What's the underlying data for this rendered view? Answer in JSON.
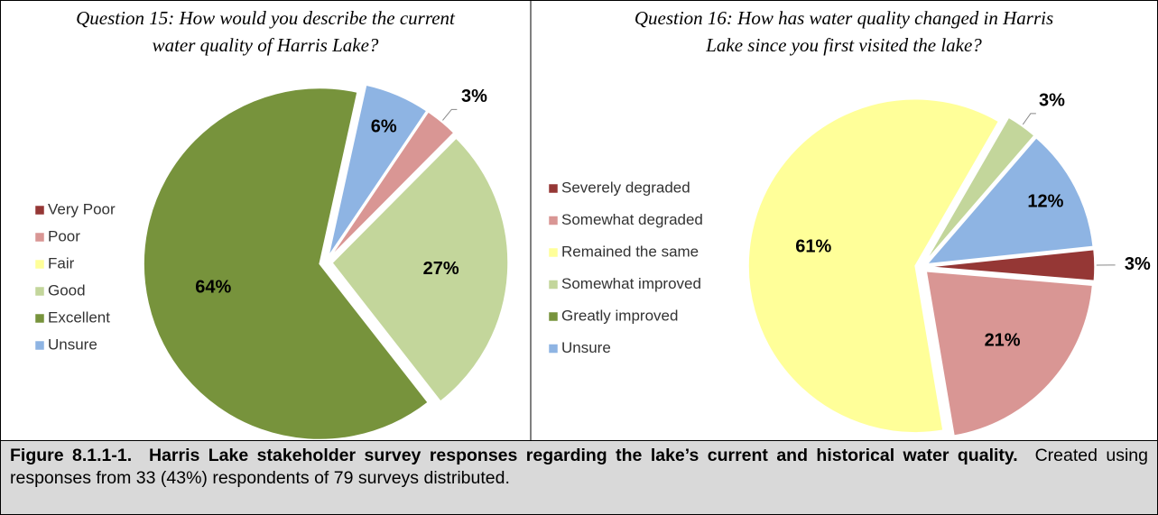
{
  "chart_data": [
    {
      "type": "pie",
      "title": "Question 15: How would you describe the current water quality of Harris Lake?",
      "categories": [
        "Very Poor",
        "Poor",
        "Fair",
        "Good",
        "Excellent",
        "Unsure"
      ],
      "values": [
        0,
        3,
        0,
        27,
        64,
        6
      ],
      "value_labels": [
        null,
        "3%",
        null,
        "27%",
        "64%",
        "6%"
      ],
      "colors": [
        "#953735",
        "#d99694",
        "#ffff99",
        "#c3d69b",
        "#77933c",
        "#8eb4e3"
      ]
    },
    {
      "type": "pie",
      "title": "Question 16: How has water quality changed in Harris Lake since you first visited the lake?",
      "categories": [
        "Severely degraded",
        "Somewhat degraded",
        "Remained the same",
        "Somewhat improved",
        "Greatly improved",
        "Unsure"
      ],
      "values": [
        3,
        21,
        61,
        3,
        0,
        12
      ],
      "value_labels": [
        "3%",
        "21%",
        "61%",
        "3%",
        null,
        "12%"
      ],
      "colors": [
        "#953735",
        "#d99694",
        "#ffff99",
        "#c3d69b",
        "#77933c",
        "#8eb4e3"
      ]
    }
  ],
  "caption": {
    "label": "Figure 8.1.1-1.",
    "title": "Harris Lake stakeholder survey responses regarding the lake’s current and historical water quality.",
    "text": "Created using responses from 33 (43%) respondents of 79 surveys distributed."
  }
}
